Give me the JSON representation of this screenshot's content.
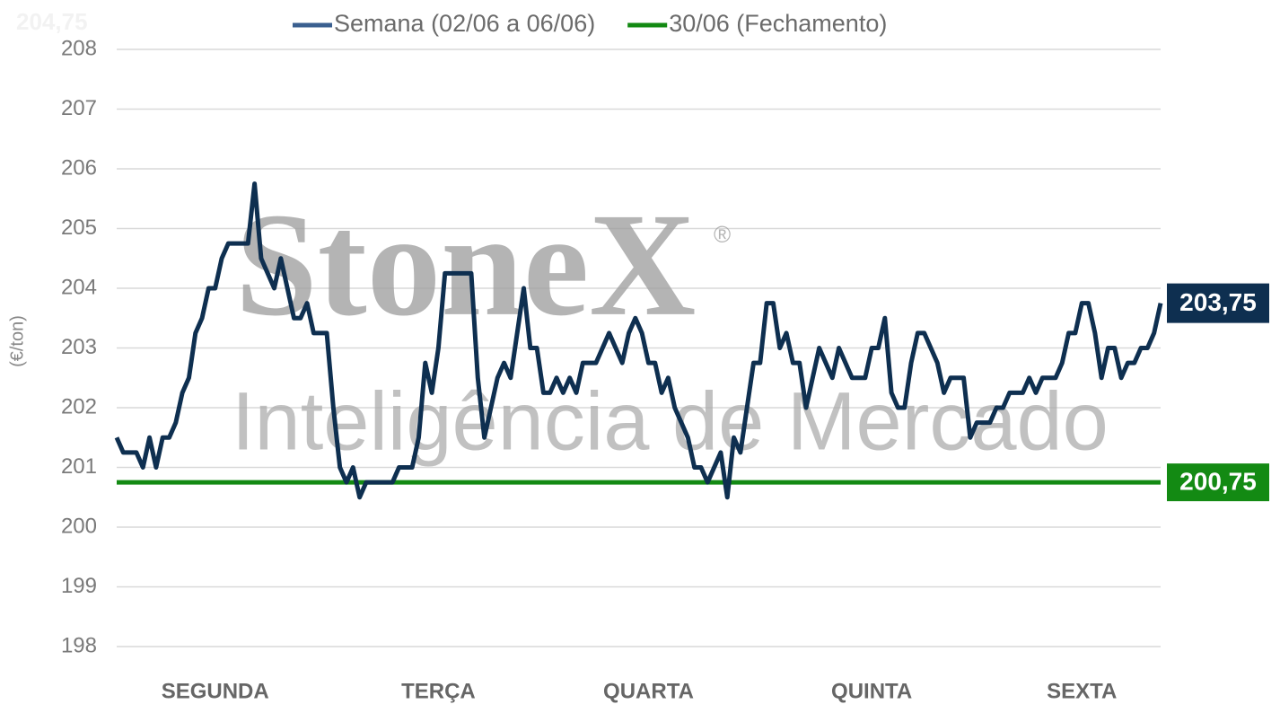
{
  "chart_data": {
    "type": "line",
    "corner_label": "204,75",
    "watermark": [
      "StoneX",
      "®",
      "Inteligência de Mercado"
    ],
    "y_label": "(€/ton)",
    "ylim": [
      198,
      208
    ],
    "yticks": [
      198,
      199,
      200,
      201,
      202,
      203,
      204,
      205,
      206,
      207,
      208
    ],
    "grid": true,
    "legend": "top",
    "categories": [
      null,
      null,
      null,
      null,
      null,
      null,
      null,
      null,
      null,
      null,
      null,
      null,
      null,
      null,
      null,
      "SEGUNDA",
      null,
      null,
      null,
      null,
      null,
      null,
      null,
      null,
      null,
      null,
      null,
      null,
      null,
      null,
      null,
      null,
      null,
      null,
      null,
      null,
      null,
      null,
      null,
      null,
      null,
      null,
      null,
      null,
      null,
      null,
      null,
      null,
      null,
      "TERÇA",
      null,
      null,
      null,
      null,
      null,
      null,
      null,
      null,
      null,
      null,
      null,
      null,
      null,
      null,
      null,
      null,
      null,
      null,
      null,
      null,
      null,
      null,
      null,
      null,
      null,
      null,
      null,
      null,
      null,
      null,
      null,
      "QUARTA",
      null,
      null,
      null,
      null,
      null,
      null,
      null,
      null,
      null,
      null,
      null,
      null,
      null,
      null,
      null,
      null,
      null,
      null,
      null,
      null,
      null,
      null,
      null,
      null,
      null,
      null,
      null,
      null,
      null,
      null,
      null,
      null,
      null,
      "QUINTA",
      null,
      null,
      null,
      null,
      null,
      null,
      null,
      null,
      null,
      null,
      null,
      null,
      null,
      null,
      null,
      null,
      null,
      null,
      null,
      null,
      null,
      null,
      null,
      null,
      null,
      null,
      null,
      null,
      null,
      null,
      null,
      "SEXTA",
      null,
      null,
      null,
      null,
      null,
      null,
      null,
      null,
      null,
      null,
      null,
      null
    ],
    "series": [
      {
        "name": "Semana (02/06 a 06/06)",
        "color": "#0e2f50",
        "end_label": "203,75",
        "values": [
          201.5,
          201.25,
          201.25,
          201.25,
          201.0,
          201.5,
          201.0,
          201.5,
          201.5,
          201.75,
          202.25,
          202.5,
          203.25,
          203.5,
          204.0,
          204.0,
          204.5,
          204.75,
          204.75,
          204.75,
          204.75,
          205.75,
          204.5,
          204.25,
          204.0,
          204.5,
          204.0,
          203.5,
          203.5,
          203.75,
          203.25,
          203.25,
          203.25,
          202.0,
          201.0,
          200.75,
          201.0,
          200.5,
          200.75,
          200.75,
          200.75,
          200.75,
          200.75,
          201.0,
          201.0,
          201.0,
          201.5,
          202.75,
          202.25,
          203.0,
          204.25,
          204.25,
          204.25,
          204.25,
          204.25,
          202.5,
          201.5,
          202.0,
          202.5,
          202.75,
          202.5,
          203.25,
          204.0,
          203.0,
          203.0,
          202.25,
          202.25,
          202.5,
          202.25,
          202.5,
          202.25,
          202.75,
          202.75,
          202.75,
          203.0,
          203.25,
          203.0,
          202.75,
          203.25,
          203.5,
          203.25,
          202.75,
          202.75,
          202.25,
          202.5,
          202.0,
          201.75,
          201.5,
          201.0,
          201.0,
          200.75,
          201.0,
          201.25,
          200.5,
          201.5,
          201.25,
          202.0,
          202.75,
          202.75,
          203.75,
          203.75,
          203.0,
          203.25,
          202.75,
          202.75,
          202.0,
          202.5,
          203.0,
          202.75,
          202.5,
          203.0,
          202.75,
          202.5,
          202.5,
          202.5,
          203.0,
          203.0,
          203.5,
          202.25,
          202.0,
          202.0,
          202.75,
          203.25,
          203.25,
          203.0,
          202.75,
          202.25,
          202.5,
          202.5,
          202.5,
          201.5,
          201.75,
          201.75,
          201.75,
          202.0,
          202.0,
          202.25,
          202.25,
          202.25,
          202.5,
          202.25,
          202.5,
          202.5,
          202.5,
          202.75,
          203.25,
          203.25,
          203.75,
          203.75,
          203.25,
          202.5,
          203.0,
          203.0,
          202.5,
          202.75,
          202.75,
          203.0,
          203.0,
          203.25,
          203.75
        ]
      }
    ],
    "reference_lines": [
      {
        "name": "30/06 (Fechamento)",
        "color": "#138a13",
        "value": 200.75,
        "value_label": "200,75"
      }
    ]
  }
}
